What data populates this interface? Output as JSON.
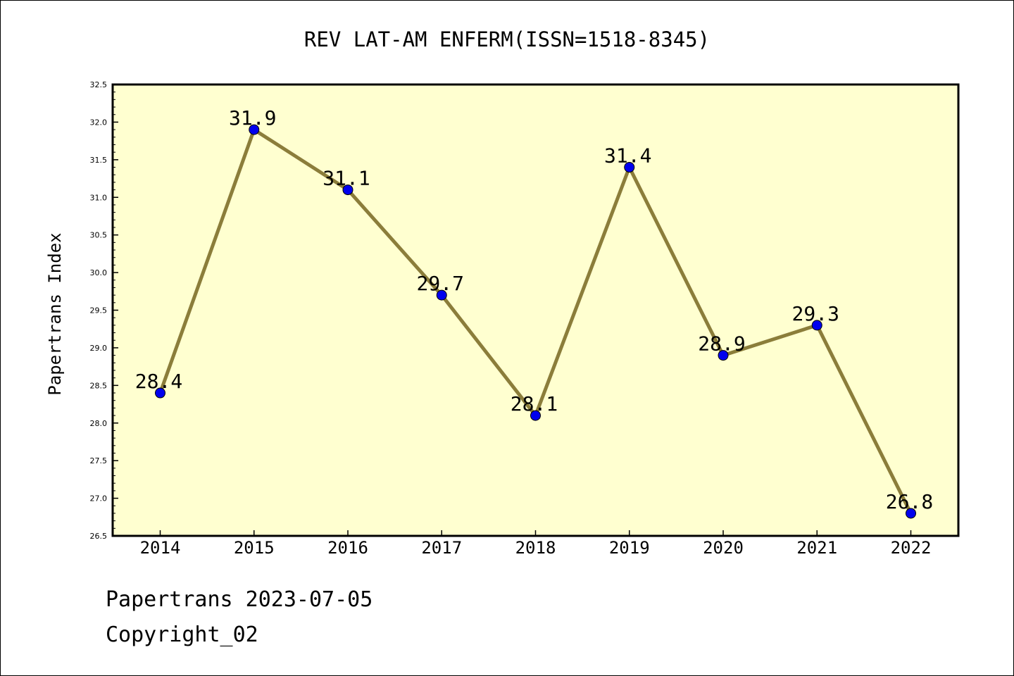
{
  "colors": {
    "plot_background": "#ffffd0",
    "line": "#8b7d3a",
    "marker": "#0000ee"
  },
  "chart_data": {
    "type": "line",
    "title": "REV LAT-AM ENFERM(ISSN=1518-8345)",
    "xlabel": "",
    "ylabel": "Papertrans Index",
    "categories": [
      "2014",
      "2015",
      "2016",
      "2017",
      "2018",
      "2019",
      "2020",
      "2021",
      "2022"
    ],
    "values": [
      28.4,
      31.9,
      31.1,
      29.7,
      28.1,
      31.4,
      28.9,
      29.3,
      26.8
    ],
    "data_labels": [
      "28.4",
      "31.9",
      "31.1",
      "29.7",
      "28.1",
      "31.4",
      "28.9",
      "29.3",
      "26.8"
    ],
    "ylim": [
      26.5,
      32.5
    ],
    "yticks": [
      "26.5",
      "27.0",
      "27.5",
      "28.0",
      "28.5",
      "29.0",
      "29.5",
      "30.0",
      "30.5",
      "31.0",
      "31.5",
      "32.0",
      "32.5"
    ],
    "grid": false,
    "legend": "none"
  },
  "footer": {
    "date_line": "Papertrans 2023-07-05",
    "copyright": "Copyright_02"
  }
}
